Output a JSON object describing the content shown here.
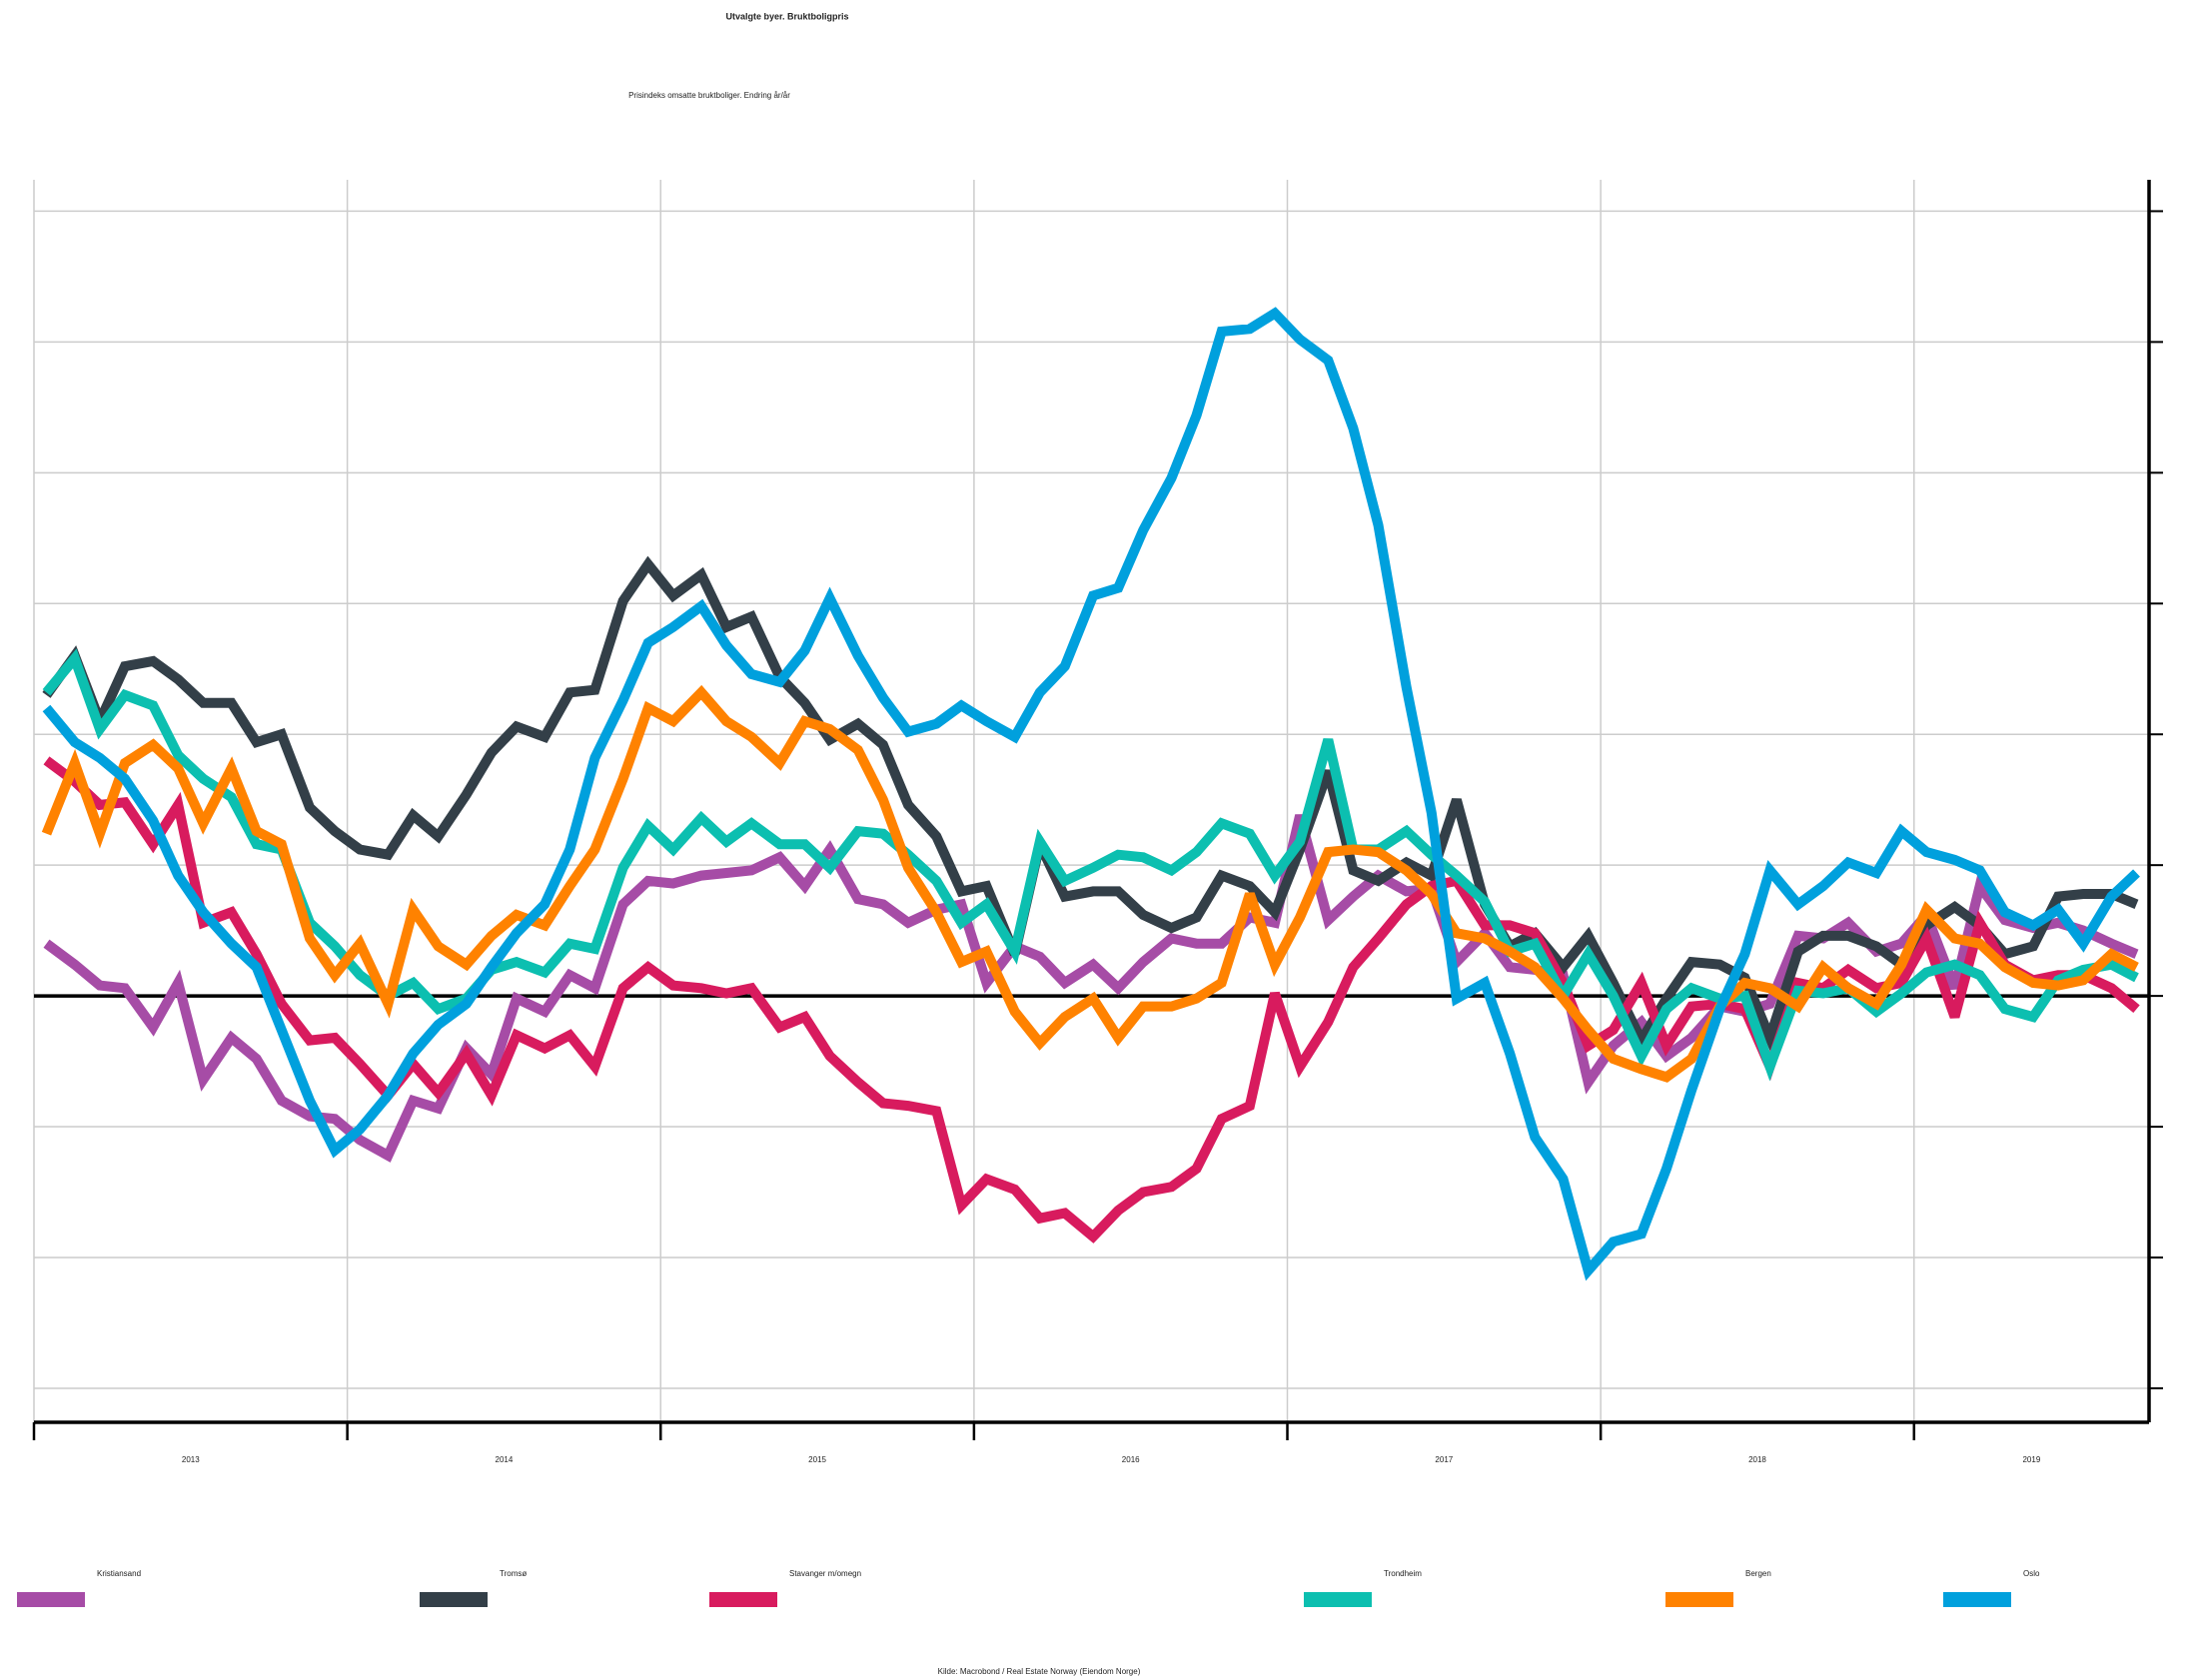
{
  "chart_data": {
    "type": "line",
    "title": "Utvalgte byer. Bruktboligpris",
    "subtitle": "Prisindeks omsatte bruktboliger. Endring år/år",
    "source": "Kilde: Macrobond / Real Estate Norway (Eiendom Norge)",
    "x": [
      2013.04,
      2013.13,
      2013.21,
      2013.29,
      2013.38,
      2013.46,
      2013.54,
      2013.63,
      2013.71,
      2013.79,
      2013.88,
      2013.96,
      2014.04,
      2014.13,
      2014.21,
      2014.29,
      2014.38,
      2014.46,
      2014.54,
      2014.63,
      2014.71,
      2014.79,
      2014.88,
      2014.96,
      2015.04,
      2015.13,
      2015.21,
      2015.29,
      2015.38,
      2015.46,
      2015.54,
      2015.63,
      2015.71,
      2015.79,
      2015.88,
      2015.96,
      2016.04,
      2016.13,
      2016.21,
      2016.29,
      2016.38,
      2016.46,
      2016.54,
      2016.63,
      2016.71,
      2016.79,
      2016.88,
      2016.96,
      2017.04,
      2017.13,
      2017.21,
      2017.29,
      2017.38,
      2017.46,
      2017.54,
      2017.63,
      2017.71,
      2017.79,
      2017.88,
      2017.96,
      2018.04,
      2018.13,
      2018.21,
      2018.29,
      2018.38,
      2018.46,
      2018.54,
      2018.63,
      2018.71,
      2018.79,
      2018.88,
      2018.96,
      2019.04,
      2019.13,
      2019.21,
      2019.29,
      2019.38,
      2019.46,
      2019.54,
      2019.63,
      2019.71
    ],
    "xlim": [
      2013,
      2019.75
    ],
    "xticks": [
      {
        "value": 2013,
        "label": "2013"
      },
      {
        "value": 2014,
        "label": "2014"
      },
      {
        "value": 2015,
        "label": "2015"
      },
      {
        "value": 2016,
        "label": "2016"
      },
      {
        "value": 2017,
        "label": "2017"
      },
      {
        "value": 2018,
        "label": "2018"
      },
      {
        "value": 2019,
        "label": "2019"
      }
    ],
    "ylim": [
      -16.3,
      31.2
    ],
    "yticks": [
      -15,
      -10,
      -5,
      0,
      5,
      10,
      15,
      20,
      25,
      30
    ],
    "grid": true,
    "series": [
      {
        "name": "Kristiansand",
        "color": "#a64ca6",
        "values": [
          2.0,
          1.2,
          0.4,
          0.3,
          -1.2,
          0.5,
          -3.2,
          -1.6,
          -2.4,
          -4.0,
          -4.6,
          -4.7,
          -5.5,
          -6.1,
          -4.0,
          -4.3,
          -2.0,
          -3.0,
          -0.1,
          -0.6,
          0.8,
          0.3,
          3.5,
          4.4,
          4.3,
          4.6,
          4.7,
          4.8,
          5.3,
          4.2,
          5.6,
          3.7,
          3.5,
          2.8,
          3.3,
          3.5,
          0.5,
          1.9,
          1.5,
          0.5,
          1.2,
          0.3,
          1.3,
          2.2,
          2.0,
          2.0,
          3.0,
          2.8,
          6.9,
          2.9,
          3.8,
          4.6,
          4.0,
          4.1,
          1.3,
          2.4,
          1.1,
          1.0,
          0.8,
          -3.3,
          -1.9,
          -1.0,
          -2.3,
          -1.6,
          -0.4,
          -0.6,
          -0.3,
          2.3,
          2.2,
          2.8,
          1.7,
          2.0,
          3.1,
          0.3,
          4.2,
          2.9,
          2.6,
          2.8,
          2.5,
          2.0,
          1.6
        ]
      },
      {
        "name": "Tromsø",
        "color": "#333f48",
        "values": [
          11.5,
          13.0,
          10.5,
          12.6,
          12.8,
          12.1,
          11.2,
          11.2,
          9.7,
          10.0,
          7.2,
          6.3,
          5.6,
          5.4,
          6.9,
          6.1,
          7.7,
          9.3,
          10.3,
          9.9,
          11.6,
          11.7,
          15.1,
          16.5,
          15.3,
          16.1,
          14.1,
          14.5,
          12.2,
          11.2,
          9.8,
          10.4,
          9.6,
          7.3,
          6.1,
          4.0,
          4.2,
          1.6,
          5.8,
          3.8,
          4.0,
          4.0,
          3.1,
          2.6,
          3.0,
          4.6,
          4.2,
          3.2,
          5.6,
          8.6,
          4.8,
          4.4,
          5.1,
          4.6,
          7.5,
          3.5,
          1.9,
          2.4,
          1.1,
          2.3,
          0.5,
          -1.7,
          -0.1,
          1.3,
          1.2,
          0.7,
          -1.6,
          1.7,
          2.3,
          2.3,
          1.9,
          1.2,
          2.7,
          3.4,
          2.7,
          1.6,
          1.9,
          3.8,
          3.9,
          3.9,
          3.5
        ]
      },
      {
        "name": "Stavanger m/omegn",
        "color": "#d81b5e",
        "values": [
          9.0,
          8.2,
          7.3,
          7.4,
          5.8,
          7.3,
          2.8,
          3.2,
          1.6,
          -0.3,
          -1.7,
          -1.6,
          -2.6,
          -3.8,
          -2.6,
          -3.7,
          -2.2,
          -3.8,
          -1.5,
          -2.0,
          -1.5,
          -2.7,
          0.3,
          1.1,
          0.4,
          0.3,
          0.1,
          0.3,
          -1.2,
          -0.8,
          -2.3,
          -3.3,
          -4.1,
          -4.2,
          -4.4,
          -8.0,
          -7.0,
          -7.4,
          -8.5,
          -8.3,
          -9.2,
          -8.2,
          -7.5,
          -7.3,
          -6.6,
          -4.7,
          -4.2,
          0.1,
          -2.7,
          -1.0,
          1.1,
          2.2,
          3.5,
          4.2,
          4.4,
          2.7,
          2.7,
          2.4,
          0.5,
          -1.9,
          -1.3,
          0.5,
          -1.9,
          -0.4,
          -0.3,
          -0.5,
          -2.7,
          0.5,
          0.3,
          1.0,
          0.3,
          0.5,
          2.2,
          -0.8,
          2.8,
          1.2,
          0.6,
          0.8,
          0.8,
          0.3,
          -0.5
        ]
      },
      {
        "name": "Trondheim",
        "color": "#0cbfb0",
        "values": [
          11.6,
          12.9,
          10.2,
          11.5,
          11.1,
          9.2,
          8.3,
          7.6,
          5.8,
          5.6,
          2.8,
          1.9,
          0.8,
          0,
          0.5,
          -0.5,
          -0.1,
          1.0,
          1.3,
          0.9,
          2.0,
          1.8,
          4.9,
          6.5,
          5.6,
          6.8,
          5.9,
          6.6,
          5.8,
          5.8,
          4.9,
          6.3,
          6.2,
          5.4,
          4.4,
          2.8,
          3.5,
          1.7,
          5.9,
          4.4,
          4.9,
          5.4,
          5.3,
          4.8,
          5.5,
          6.6,
          6.2,
          4.6,
          5.9,
          9.8,
          5.6,
          5.6,
          6.3,
          5.4,
          4.6,
          3.6,
          1.7,
          2.0,
          0,
          1.6,
          0,
          -2.3,
          -0.5,
          0.3,
          -0.1,
          0,
          -2.7,
          0.2,
          0.1,
          0.3,
          -0.6,
          0.1,
          0.9,
          1.2,
          0.8,
          -0.5,
          -0.8,
          0.6,
          1.0,
          1.2,
          0.7
        ]
      },
      {
        "name": "Bergen",
        "color": "#ff8200",
        "values": [
          6.2,
          8.9,
          6.2,
          8.9,
          9.6,
          8.7,
          6.6,
          8.7,
          6.3,
          5.8,
          2.2,
          0.8,
          2.0,
          -0.3,
          3.3,
          1.9,
          1.2,
          2.3,
          3.1,
          2.7,
          4.2,
          5.6,
          8.3,
          11.0,
          10.5,
          11.6,
          10.5,
          9.9,
          8.9,
          10.5,
          10.2,
          9.4,
          7.5,
          4.9,
          3.2,
          1.3,
          1.7,
          -0.6,
          -1.8,
          -0.8,
          -0.1,
          -1.6,
          -0.4,
          -0.4,
          -0.1,
          0.5,
          3.9,
          1.2,
          3.0,
          5.5,
          5.6,
          5.5,
          4.8,
          3.9,
          2.4,
          2.2,
          1.7,
          1.1,
          -0.1,
          -1.3,
          -2.4,
          -2.8,
          -3.1,
          -2.4,
          -0.4,
          0.5,
          0.3,
          -0.4,
          1.1,
          0.3,
          -0.3,
          1.2,
          3.3,
          2.2,
          2.0,
          1.1,
          0.5,
          0.4,
          0.6,
          1.6,
          1.1
        ]
      },
      {
        "name": "Oslo",
        "color": "#00a0dd",
        "values": [
          11.0,
          9.7,
          9.1,
          8.3,
          6.7,
          4.6,
          3.2,
          2.0,
          1.1,
          -1.3,
          -4.0,
          -5.9,
          -5.1,
          -3.8,
          -2.2,
          -1.1,
          -0.3,
          1.1,
          2.4,
          3.5,
          5.6,
          9.1,
          11.3,
          13.5,
          14.1,
          14.9,
          13.4,
          12.3,
          12.0,
          13.2,
          15.2,
          13.0,
          11.4,
          10.1,
          10.4,
          11.1,
          10.5,
          9.9,
          11.6,
          12.6,
          15.3,
          15.6,
          17.8,
          19.8,
          22.2,
          25.4,
          25.5,
          26.1,
          25.1,
          24.3,
          21.7,
          18.0,
          11.8,
          7.0,
          -0.1,
          0.5,
          -2.2,
          -5.4,
          -7.0,
          -10.5,
          -9.4,
          -9.1,
          -6.6,
          -3.6,
          -0.5,
          1.6,
          4.8,
          3.5,
          4.2,
          5.1,
          4.7,
          6.3,
          5.5,
          5.2,
          4.8,
          3.2,
          2.7,
          3.3,
          2.0,
          3.8,
          4.7
        ]
      }
    ]
  }
}
